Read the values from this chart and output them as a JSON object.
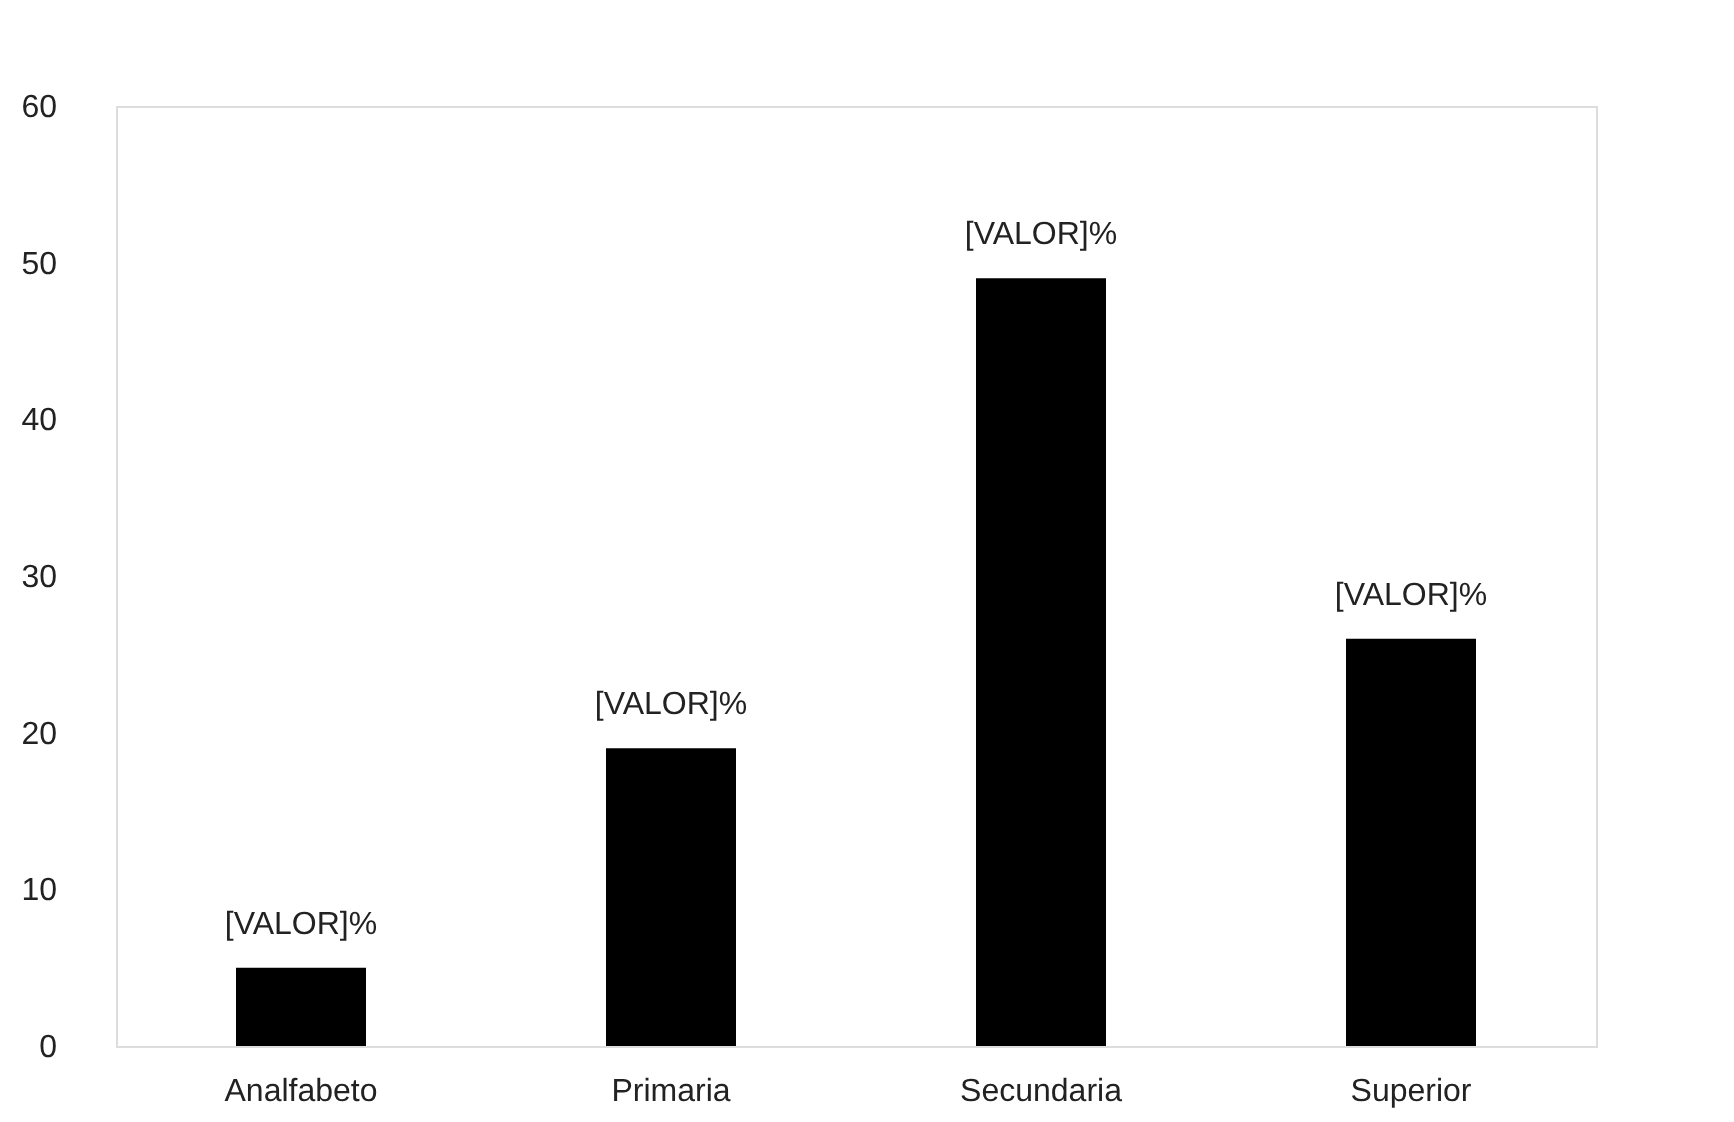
{
  "chart_data": {
    "type": "bar",
    "categories": [
      "Analfabeto",
      "Primaria",
      "Secundaria",
      "Superior"
    ],
    "values": [
      5,
      19,
      49,
      26
    ],
    "color": "#000000",
    "value_labels": [
      "[VALOR]%",
      "[VALOR]%",
      "[VALOR]%",
      "[VALOR]%"
    ],
    "ylim": [
      0,
      60
    ],
    "yticks": [
      0,
      10,
      20,
      30,
      40,
      50,
      60
    ],
    "grid": false
  }
}
